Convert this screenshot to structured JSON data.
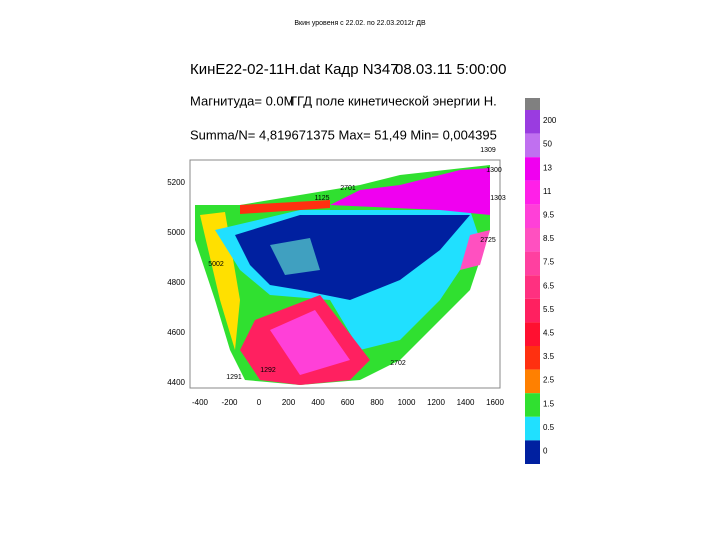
{
  "slide_title": "Вкин уровеня с 22.02. по 22.03.2012г ДВ",
  "header": {
    "file": "КинЕ22-02-11Н.dat Кадр N347",
    "datetime": "08.03.11 5:00:00",
    "magnitude": "Магнитуда= 0.0М",
    "field": "ГГД поле кинетической энергии Н.",
    "stats": "Summa/N= 4,819671375 Max= 51,49 Min= 0,004395"
  },
  "y_axis": [
    "5200",
    "5000",
    "4800",
    "4600",
    "4400"
  ],
  "x_axis": [
    "-400",
    "-200",
    "0",
    "200",
    "400",
    "600",
    "800",
    "1000",
    "1200",
    "1400",
    "1600"
  ],
  "stations": [
    "1309",
    "1300",
    "2701",
    "1303",
    "2725",
    "2702",
    "1291",
    "1292",
    "5002",
    "1125"
  ],
  "colorbar": [
    {
      "label": "200",
      "color": "#9a3ce0"
    },
    {
      "label": "50",
      "color": "#c070f0"
    },
    {
      "label": "13",
      "color": "#f000f0"
    },
    {
      "label": "11",
      "color": "#ff20e8"
    },
    {
      "label": "9.5",
      "color": "#ff40d8"
    },
    {
      "label": "8.5",
      "color": "#ff50c0"
    },
    {
      "label": "7.5",
      "color": "#ff40a0"
    },
    {
      "label": "6.5",
      "color": "#ff3080"
    },
    {
      "label": "5.5",
      "color": "#ff2060"
    },
    {
      "label": "4.5",
      "color": "#ff1030"
    },
    {
      "label": "3.5",
      "color": "#ff3010"
    },
    {
      "label": "2.5",
      "color": "#ff8000"
    },
    {
      "label": "1.5",
      "color": "#30e030"
    },
    {
      "label": "0.5",
      "color": "#20e0ff"
    },
    {
      "label": "0",
      "color": "#0020a0"
    }
  ]
}
